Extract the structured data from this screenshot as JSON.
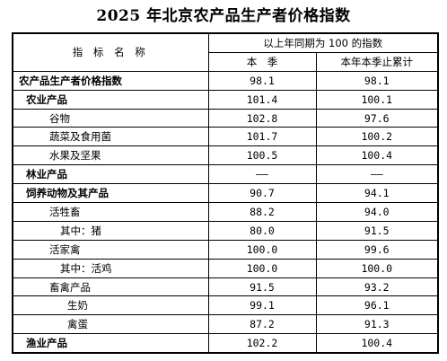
{
  "title": "2025 年北京农产品生产者价格指数",
  "header": {
    "indicator": "指 标 名 称",
    "group": "以上年同期为 100 的指数",
    "col1": "本　季",
    "col2": "本年本季止累计"
  },
  "rows": [
    {
      "name": "农产品生产者价格指数",
      "v1": "98.1",
      "v2": "98.1"
    },
    {
      "name": "农业产品",
      "v1": "101.4",
      "v2": "100.1"
    },
    {
      "name": "谷物",
      "v1": "102.8",
      "v2": "97.6"
    },
    {
      "name": "蔬菜及食用菌",
      "v1": "101.7",
      "v2": "100.2"
    },
    {
      "name": "水果及坚果",
      "v1": "100.5",
      "v2": "100.4"
    },
    {
      "name": "林业产品",
      "v1": "——",
      "v2": "——"
    },
    {
      "name": "饲养动物及其产品",
      "v1": "90.7",
      "v2": "94.1"
    },
    {
      "name": "活牲畜",
      "v1": "88.2",
      "v2": "94.0"
    },
    {
      "name": "其中：猪",
      "v1": "80.0",
      "v2": "91.5"
    },
    {
      "name": "活家禽",
      "v1": "100.0",
      "v2": "99.6"
    },
    {
      "name": "其中：活鸡",
      "v1": "100.0",
      "v2": "100.0"
    },
    {
      "name": "畜禽产品",
      "v1": "91.5",
      "v2": "93.2"
    },
    {
      "name": "生奶",
      "v1": "99.1",
      "v2": "96.1"
    },
    {
      "name": "禽蛋",
      "v1": "87.2",
      "v2": "91.3"
    },
    {
      "name": "渔业产品",
      "v1": "102.2",
      "v2": "100.4"
    }
  ]
}
